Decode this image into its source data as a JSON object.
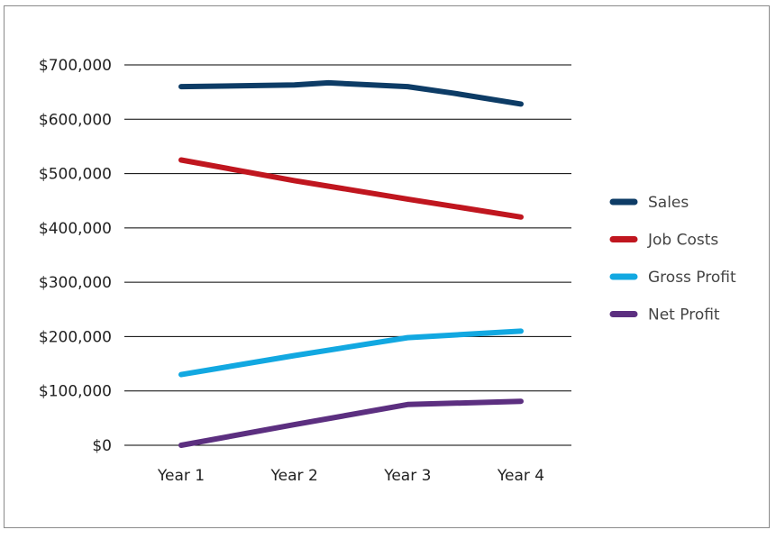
{
  "chart_data": {
    "type": "line",
    "title": "",
    "xlabel": "",
    "ylabel": "",
    "categories": [
      "Year 1",
      "Year 2",
      "Year 3",
      "Year 4"
    ],
    "ylim": [
      0,
      700000
    ],
    "y_ticks": [
      "$0",
      "$100,000",
      "$200,000",
      "$300,000",
      "$400,000",
      "$500,000",
      "$600,000",
      "$700,000"
    ],
    "y_tick_values": [
      0,
      100000,
      200000,
      300000,
      400000,
      500000,
      600000,
      700000
    ],
    "grid": true,
    "legend_position": "right",
    "series": [
      {
        "name": "Sales",
        "color": "#0d3c66",
        "x": [
          1,
          2,
          2.3,
          3,
          3.4,
          4
        ],
        "values": [
          660000,
          663000,
          667000,
          660000,
          648000,
          628000
        ]
      },
      {
        "name": "Job Costs",
        "color": "#c0161f",
        "x": [
          1,
          2,
          3,
          4
        ],
        "values": [
          525000,
          487000,
          453000,
          420000
        ]
      },
      {
        "name": "Gross Profit",
        "color": "#12a8e1",
        "x": [
          1,
          2,
          3,
          4
        ],
        "values": [
          130000,
          165000,
          198000,
          210000
        ]
      },
      {
        "name": "Net Profit",
        "color": "#5c2f80",
        "x": [
          1,
          2,
          3,
          4
        ],
        "values": [
          0,
          38000,
          75000,
          81000
        ]
      }
    ]
  }
}
